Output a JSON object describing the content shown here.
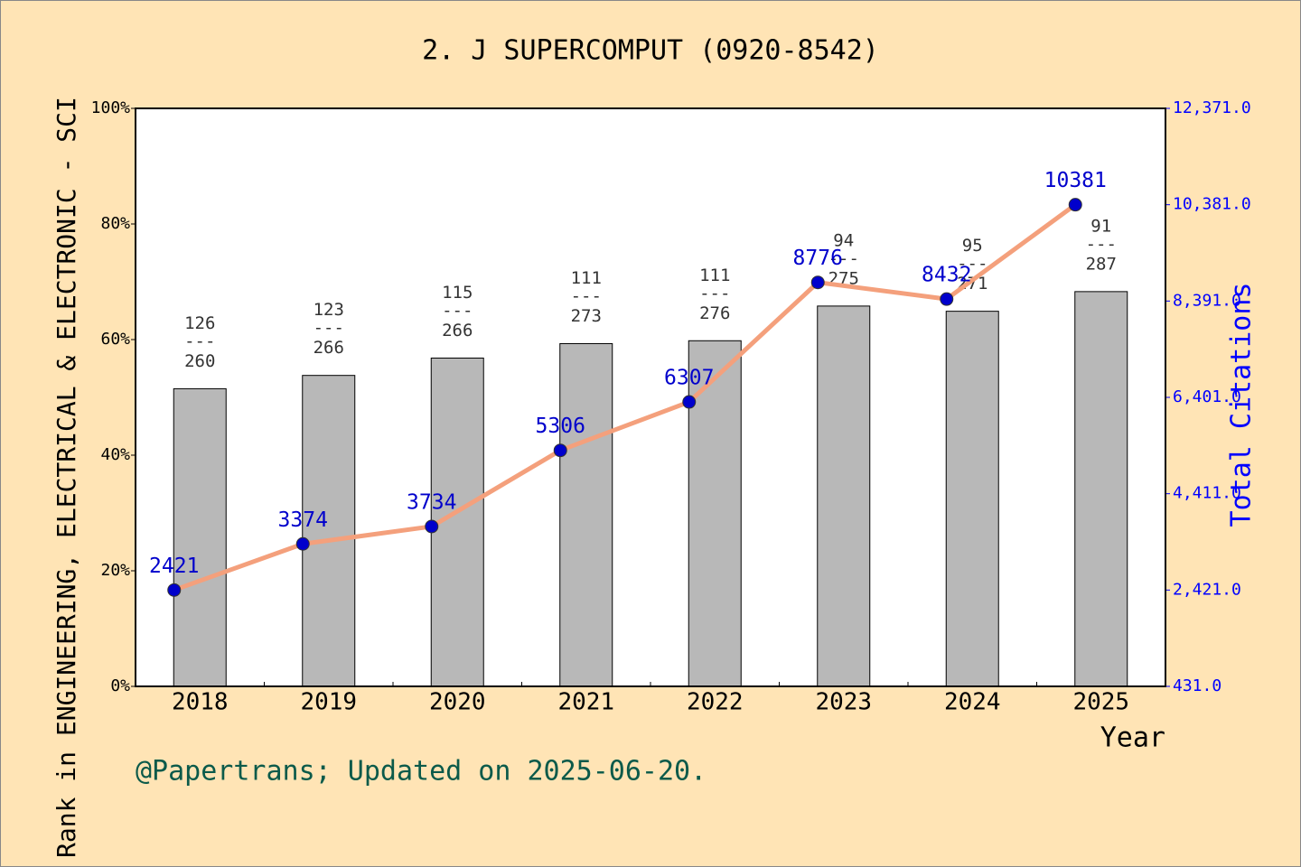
{
  "chart_data": {
    "type": "bar",
    "title": "2. J SUPERCOMPUT (0920-8542)",
    "y_label": "Rank in ENGINEERING, ELECTRICAL & ELECTRONIC - SCI",
    "y2_label": "Total Citations",
    "x_label": "Year",
    "footer": "@Papertrans; Updated on 2025-06-20.",
    "categories": [
      "2018",
      "2019",
      "2020",
      "2021",
      "2022",
      "2023",
      "2024",
      "2025"
    ],
    "values": [
      51.5,
      53.8,
      56.8,
      59.3,
      59.8,
      65.8,
      64.9,
      68.3
    ],
    "color": "#b8b8b8",
    "ranks": [
      126,
      123,
      115,
      111,
      111,
      94,
      95,
      91
    ],
    "totals": [
      260,
      266,
      266,
      273,
      276,
      275,
      271,
      287
    ],
    "label_separator": "---",
    "ylim": [
      0,
      100
    ],
    "yticks": [
      {
        "value": 0,
        "label": "0%"
      },
      {
        "value": 20,
        "label": "20%"
      },
      {
        "value": 40,
        "label": "40%"
      },
      {
        "value": 60,
        "label": "60%"
      },
      {
        "value": 80,
        "label": "80%"
      },
      {
        "value": 100,
        "label": "100%"
      }
    ],
    "y2lim": [
      431,
      12371
    ],
    "y2ticks": [
      {
        "value": 431,
        "label": "431.0"
      },
      {
        "value": 2421,
        "label": "2,421.0"
      },
      {
        "value": 4411,
        "label": "4,411.0"
      },
      {
        "value": 6401,
        "label": "6,401.0"
      },
      {
        "value": 8391,
        "label": "8,391.0"
      },
      {
        "value": 10381,
        "label": "10,381.0"
      },
      {
        "value": 12371,
        "label": "12,371.0"
      }
    ],
    "series": [
      {
        "type": "line",
        "axis": "y2",
        "color": "#f4a07c",
        "marker_color": "#0000cc",
        "values": [
          2421,
          3374,
          3734,
          5306,
          6307,
          8776,
          8432,
          10381
        ]
      }
    ]
  }
}
